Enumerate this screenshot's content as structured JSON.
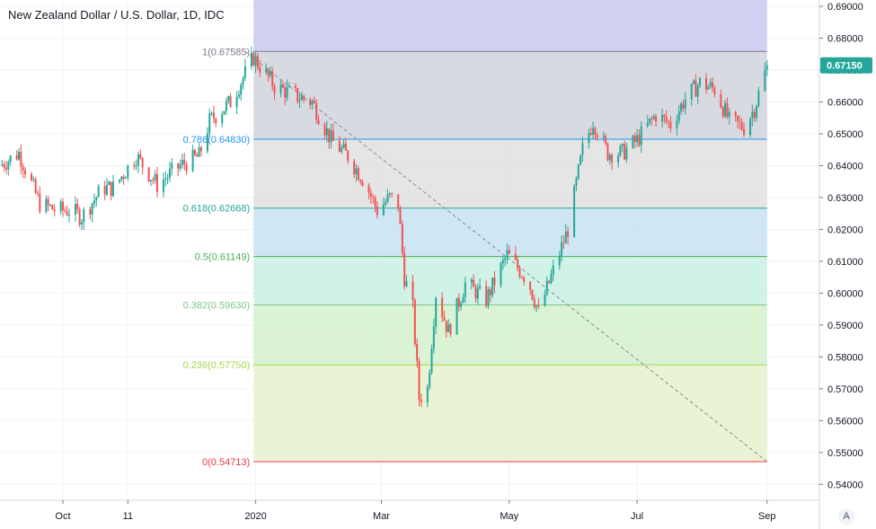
{
  "header": {
    "title": "New Zealand Dollar / U.S. Dollar, 1D, IDC"
  },
  "colors": {
    "up": "#26a69a",
    "down": "#ef5350",
    "grid": "#f0f3fa",
    "axis": "#787b86",
    "last_price_bg": "#26a69a",
    "background": "#ffffff"
  },
  "controls": {
    "auto_scale_label": "A"
  },
  "chart_data": {
    "type": "candlestick",
    "title": "New Zealand Dollar / U.S. Dollar, 1D, IDC",
    "xlabel": "",
    "ylabel": "",
    "ylim": [
      0.535,
      0.692
    ],
    "xlim": [
      "2019-09-01",
      "2020-09-26"
    ],
    "grid": true,
    "price_axis": "right",
    "y_ticks": [
      0.69,
      0.68,
      0.67,
      0.66,
      0.65,
      0.64,
      0.63,
      0.62,
      0.61,
      0.6,
      0.59,
      0.58,
      0.57,
      0.56,
      0.55,
      0.54
    ],
    "y_tick_labels": [
      "0.69000",
      "0.68000",
      "0.67000",
      "0.66000",
      "0.65000",
      "0.64000",
      "0.63000",
      "0.62000",
      "0.61000",
      "0.60000",
      "0.59000",
      "0.58000",
      "0.57000",
      "0.56000",
      "0.55000",
      "0.54000"
    ],
    "x_ticks": [
      {
        "label": "Oct",
        "date": "2019-10-01"
      },
      {
        "label": "11",
        "date": "2019-11-01"
      },
      {
        "label": "2020",
        "date": "2020-01-01"
      },
      {
        "label": "Mar",
        "date": "2020-03-01"
      },
      {
        "label": "May",
        "date": "2020-05-01"
      },
      {
        "label": "Jul",
        "date": "2020-07-01"
      },
      {
        "label": "Sep",
        "date": "2020-09-01"
      }
    ],
    "last_price": "0.67150",
    "last_price_value": 0.6715,
    "fibonacci": {
      "start_date": "2019-12-31",
      "end_date": "2020-09-01",
      "levels": [
        {
          "label": "1(0.67585)",
          "value": 0.67585,
          "color": "#787b86",
          "fill": "#d1d4dc"
        },
        {
          "label": "0.786(0.64830)",
          "value": 0.6483,
          "color": "#2196f3",
          "fill": "#e0e0e0"
        },
        {
          "label": "0.618(0.62668)",
          "value": 0.62668,
          "color": "#26a69a",
          "fill": "#c7e3f2"
        },
        {
          "label": "0.5(0.61149)",
          "value": 0.61149,
          "color": "#4caf50",
          "fill": "#c9f0e3"
        },
        {
          "label": "0.382(0.59630)",
          "value": 0.5963,
          "color": "#81c784",
          "fill": "#d2f1cd"
        },
        {
          "label": "0.236(0.57750)",
          "value": 0.5775,
          "color": "#a5d64c",
          "fill": "#e6f2cd"
        },
        {
          "label": "0(0.54713)",
          "value": 0.54713,
          "color": "#f23645",
          "fill": "#f5d2d2"
        }
      ],
      "top_band_color": "#c9c9f0",
      "trend_line": {
        "from": [
          "2019-12-27",
          0.67585
        ],
        "to": [
          "2020-09-01",
          0.54713
        ]
      }
    },
    "series": [
      {
        "name": "NZDUSD",
        "anchors": [
          [
            "2019-09-01",
            0.64
          ],
          [
            "2019-09-10",
            0.644
          ],
          [
            "2019-09-20",
            0.628
          ],
          [
            "2019-09-28",
            0.626
          ],
          [
            "2019-10-05",
            0.626
          ],
          [
            "2019-10-10",
            0.624
          ],
          [
            "2019-10-20",
            0.633
          ],
          [
            "2019-10-25",
            0.633
          ],
          [
            "2019-11-05",
            0.643
          ],
          [
            "2019-11-15",
            0.634
          ],
          [
            "2019-11-26",
            0.64
          ],
          [
            "2019-12-05",
            0.643
          ],
          [
            "2019-12-10",
            0.654
          ],
          [
            "2019-12-20",
            0.66
          ],
          [
            "2019-12-31",
            0.674
          ],
          [
            "2020-01-10",
            0.665
          ],
          [
            "2020-01-20",
            0.662
          ],
          [
            "2020-01-28",
            0.66
          ],
          [
            "2020-02-06",
            0.648
          ],
          [
            "2020-02-14",
            0.643
          ],
          [
            "2020-02-22",
            0.635
          ],
          [
            "2020-02-28",
            0.626
          ],
          [
            "2020-03-05",
            0.63
          ],
          [
            "2020-03-09",
            0.628
          ],
          [
            "2020-03-12",
            0.605
          ],
          [
            "2020-03-16",
            0.595
          ],
          [
            "2020-03-19",
            0.567
          ],
          [
            "2020-03-23",
            0.57
          ],
          [
            "2020-03-27",
            0.6
          ],
          [
            "2020-04-02",
            0.588
          ],
          [
            "2020-04-10",
            0.603
          ],
          [
            "2020-04-20",
            0.598
          ],
          [
            "2020-04-30",
            0.612
          ],
          [
            "2020-05-10",
            0.604
          ],
          [
            "2020-05-15",
            0.594
          ],
          [
            "2020-05-22",
            0.607
          ],
          [
            "2020-05-29",
            0.62
          ],
          [
            "2020-06-05",
            0.645
          ],
          [
            "2020-06-10",
            0.654
          ],
          [
            "2020-06-17",
            0.644
          ],
          [
            "2020-06-24",
            0.644
          ],
          [
            "2020-07-01",
            0.648
          ],
          [
            "2020-07-10",
            0.656
          ],
          [
            "2020-07-17",
            0.653
          ],
          [
            "2020-07-24",
            0.661
          ],
          [
            "2020-07-31",
            0.666
          ],
          [
            "2020-08-07",
            0.664
          ],
          [
            "2020-08-14",
            0.654
          ],
          [
            "2020-08-21",
            0.652
          ],
          [
            "2020-08-26",
            0.658
          ],
          [
            "2020-09-01",
            0.6715
          ]
        ]
      }
    ]
  }
}
